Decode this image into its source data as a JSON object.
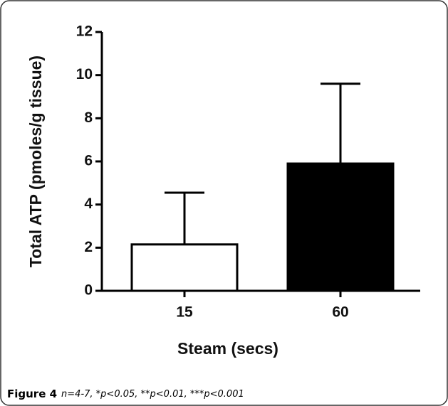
{
  "chart_data": {
    "type": "bar",
    "xlabel": "Steam (secs)",
    "ylabel": "Total ATP (pmoles/g tissue)",
    "categories": [
      "15",
      "60"
    ],
    "values": [
      2.15,
      5.9
    ],
    "errors": [
      2.4,
      3.7
    ],
    "colors": [
      "#ffffff",
      "#000000"
    ],
    "ylim": [
      0,
      12
    ],
    "yticks": [
      0,
      2,
      4,
      6,
      8,
      10,
      12
    ],
    "figure_label": "Figure 4",
    "caption": "n=4-7, *p<0.05, **p<0.01, ***p<0.001"
  }
}
